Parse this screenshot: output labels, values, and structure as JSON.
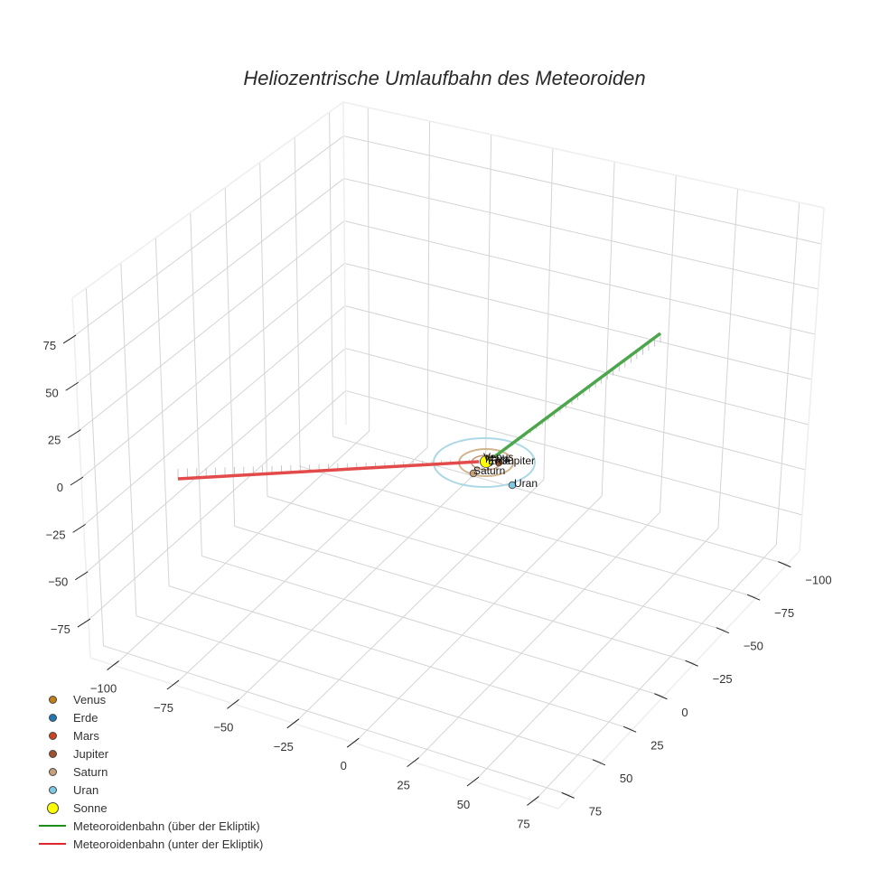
{
  "chart_data": {
    "type": "scatter3d",
    "title": "Heliozentrische Umlaufbahn des Meteoroiden",
    "axes": {
      "x": {
        "ticks": [
          -100,
          -75,
          -50,
          -25,
          0,
          25,
          50,
          75
        ],
        "range": [
          -110,
          85
        ]
      },
      "y": {
        "ticks": [
          -100,
          -75,
          -50,
          -25,
          0,
          25,
          50,
          75
        ],
        "range": [
          -110,
          85
        ]
      },
      "z": {
        "ticks": [
          -75,
          -50,
          -25,
          0,
          25,
          50,
          75
        ],
        "range": [
          -95,
          95
        ]
      }
    },
    "grid": true,
    "legend_position": "bottom-left",
    "series": [
      {
        "name": "Venus",
        "type": "marker",
        "color": "#c47f17",
        "position": [
          0.5,
          0.5,
          0
        ]
      },
      {
        "name": "Erde",
        "type": "marker",
        "color": "#1f77b4",
        "position": [
          0.8,
          -0.5,
          0
        ]
      },
      {
        "name": "Mars",
        "type": "marker",
        "color": "#cc4422",
        "position": [
          -1.2,
          0.9,
          0
        ]
      },
      {
        "name": "Jupiter",
        "type": "marker",
        "color": "#a0522d",
        "position": [
          3.5,
          3.9,
          0
        ],
        "orbit_color": "#a0522d"
      },
      {
        "name": "Saturn",
        "type": "marker",
        "color": "#c8a07a",
        "position": [
          -8.5,
          4.5,
          0
        ],
        "orbit_color": "#c8a07a"
      },
      {
        "name": "Uran",
        "type": "marker",
        "color": "#7ec8e3",
        "position": [
          4,
          19,
          0
        ],
        "orbit_color": "#add8e6"
      },
      {
        "name": "Sonne",
        "type": "marker",
        "color": "#ffff00",
        "position": [
          0,
          0,
          0
        ]
      },
      {
        "name": "Meteoroidenbahn (über der Ekliptik)",
        "type": "line",
        "color": "#2ca02c",
        "from": [
          0,
          0,
          0
        ],
        "to": [
          -20,
          -85,
          45
        ]
      },
      {
        "name": "Meteoroidenbahn (unter der Ekliptik)",
        "type": "line",
        "color": "#d62728",
        "from": [
          0,
          0,
          0
        ],
        "to": [
          -100,
          70,
          -5
        ]
      }
    ]
  },
  "title": "Heliozentrische Umlaufbahn des Meteoroiden",
  "legend": [
    {
      "label": "Venus",
      "kind": "dot",
      "color": "#c47f17",
      "size": 9
    },
    {
      "label": "Erde",
      "kind": "dot",
      "color": "#1f77b4",
      "size": 9
    },
    {
      "label": "Mars",
      "kind": "dot",
      "color": "#cc4422",
      "size": 9
    },
    {
      "label": "Jupiter",
      "kind": "dot",
      "color": "#a0522d",
      "size": 9
    },
    {
      "label": "Saturn",
      "kind": "dot",
      "color": "#c8a07a",
      "size": 9
    },
    {
      "label": "Uran",
      "kind": "dot",
      "color": "#7ec8e3",
      "size": 9
    },
    {
      "label": "Sonne",
      "kind": "dot",
      "color": "#ffff00",
      "size": 13
    },
    {
      "label": "Meteoroidenbahn (über der Ekliptik)",
      "kind": "line",
      "color": "#1a8f1a"
    },
    {
      "label": "Meteoroidenbahn (unter der Ekliptik)",
      "kind": "line",
      "color": "#e0262a"
    }
  ],
  "labels": {
    "z_ticks": [
      "75",
      "50",
      "25",
      "0",
      "−25",
      "−50",
      "−75"
    ],
    "x_ticks": [
      "−100",
      "−75",
      "−50",
      "−25",
      "0",
      "25",
      "50",
      "75"
    ],
    "y_ticks": [
      "−100",
      "−75",
      "−50",
      "−25",
      "0",
      "25",
      "50",
      "75"
    ],
    "planet_labels": [
      "Venus",
      "Mars",
      "Erde",
      "Jupiter",
      "Saturn",
      "Uran"
    ]
  }
}
